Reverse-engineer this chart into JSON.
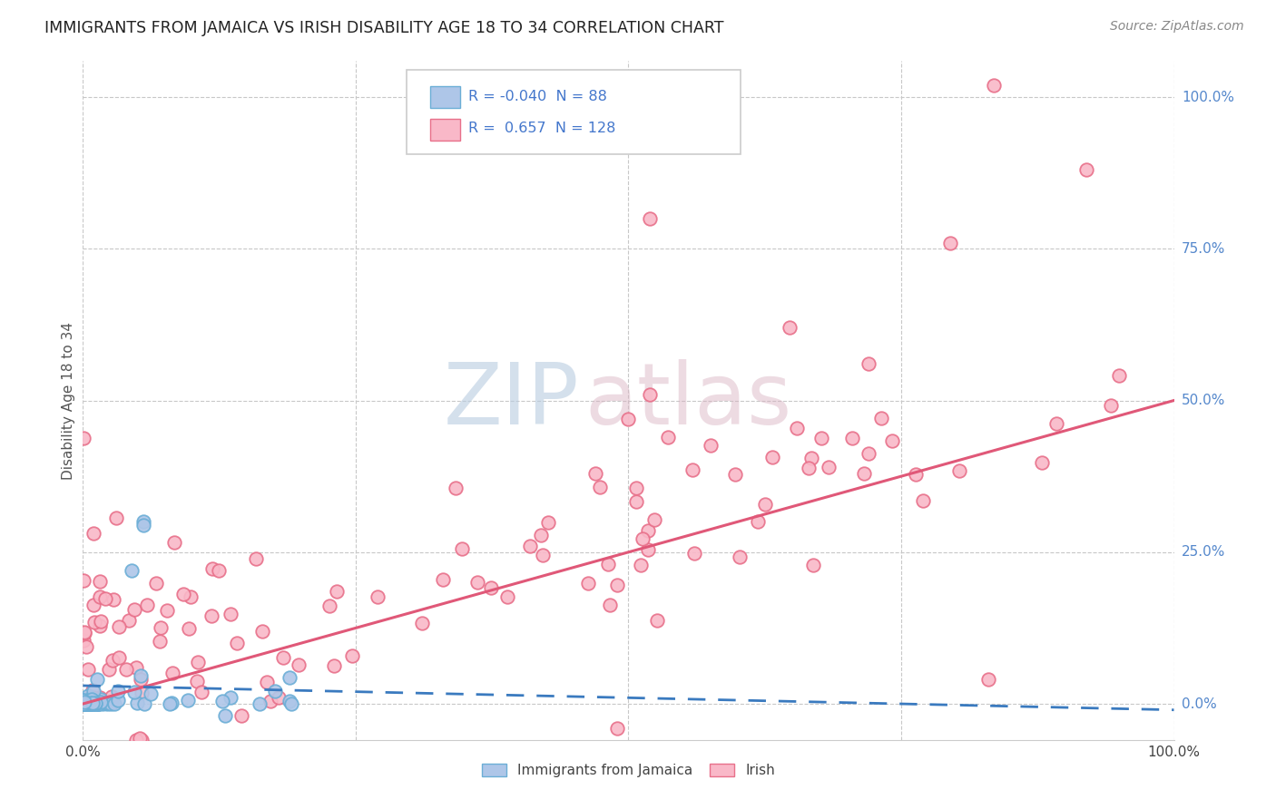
{
  "title": "IMMIGRANTS FROM JAMAICA VS IRISH DISABILITY AGE 18 TO 34 CORRELATION CHART",
  "source": "Source: ZipAtlas.com",
  "ylabel": "Disability Age 18 to 34",
  "watermark_zip": "ZIP",
  "watermark_atlas": "atlas",
  "legend": {
    "jamaica_R": "-0.040",
    "jamaica_N": "88",
    "irish_R": "0.657",
    "irish_N": "128"
  },
  "jamaica_fill": "#aec6e8",
  "jamaica_edge": "#6baed6",
  "irish_fill": "#f9b8c8",
  "irish_edge": "#e8708a",
  "jamaica_line_color": "#3a7abf",
  "irish_line_color": "#e05878",
  "background_color": "#ffffff",
  "grid_color": "#c8c8c8",
  "right_label_color": "#5588cc",
  "legend_text_color": "#4477cc",
  "title_color": "#222222",
  "source_color": "#888888",
  "axis_label_color": "#555555"
}
